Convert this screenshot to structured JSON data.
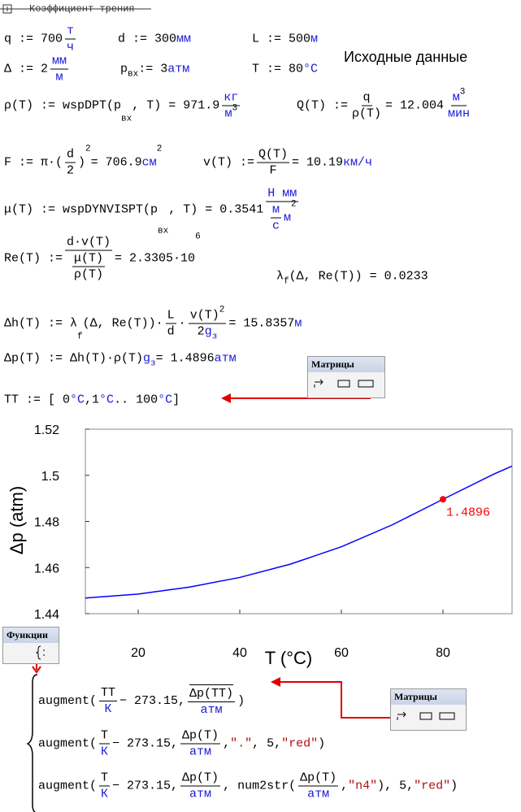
{
  "header": {
    "title": "Коэффициент трения"
  },
  "note": "Исходные данные",
  "formulas": [
    {
      "items": [
        "q := 700 ",
        {
          "fr": [
            [
              {
                "u": "т"
              }
            ],
            [
              {
                "u": "ч"
              }
            ]
          ]
        }
      ]
    },
    {
      "items": [
        "d := 300 ",
        {
          "u": "мм"
        }
      ]
    },
    {
      "items": [
        "L := 500 ",
        {
          "u": "м"
        }
      ]
    },
    {
      "items": [
        "Δ := 2 ",
        {
          "fr": [
            [
              {
                "u": "мм"
              }
            ],
            [
              {
                "u": "м"
              }
            ]
          ]
        }
      ]
    },
    {
      "items": [
        "p",
        {
          "sub": [
            "вх"
          ]
        },
        " := 3 ",
        {
          "u": "атм"
        }
      ]
    },
    {
      "items": [
        "T := 80 ",
        {
          "u": "°C"
        }
      ]
    },
    {
      "items": [
        "ρ(T) := wspDPT(p",
        {
          "sub": [
            "вх"
          ]
        },
        ", T) = 971.9 ",
        {
          "fr": [
            [
              {
                "u": "кг"
              }
            ],
            [
              {
                "u": "м"
              },
              {
                "sup": [
                  "3"
                ]
              }
            ]
          ]
        }
      ]
    },
    {
      "items": [
        "Q(T) := ",
        {
          "fr": [
            [
              "q"
            ],
            [
              "ρ(T)"
            ]
          ]
        },
        " = 12.004 ",
        {
          "fr": [
            [
              {
                "u": "м"
              },
              {
                "sup": [
                  "3"
                ]
              }
            ],
            [
              {
                "u": "мин"
              }
            ]
          ]
        }
      ]
    },
    {
      "items": [
        "F := π·(",
        {
          "fr": [
            [
              "d"
            ],
            [
              "2"
            ]
          ]
        },
        ")",
        {
          "sup": [
            "2"
          ]
        },
        " = 706.9 ",
        {
          "u": "см"
        },
        {
          "sup": [
            "2"
          ]
        }
      ]
    },
    {
      "items": [
        "v(T) := ",
        {
          "fr": [
            [
              "Q(T)"
            ],
            [
              "F"
            ]
          ]
        },
        " = 10.19 ",
        {
          "u": "км/ч"
        }
      ]
    },
    {
      "items": [
        "μ(T) := wspDYNVISPT(p",
        {
          "sub": [
            "вх"
          ]
        },
        ", T) = 0.3541 ",
        {
          "fr": [
            [
              {
                "u": "Н мм"
              }
            ],
            [
              {
                "fr": [
                  [
                    {
                      "u": "м"
                    }
                  ],
                  [
                    {
                      "u": "с"
                    }
                  ]
                ]
              },
              " ",
              {
                "u": "м"
              },
              {
                "sup": [
                  "2"
                ]
              }
            ]
          ]
        }
      ]
    },
    {
      "items": [
        "Re(T) := ",
        {
          "fr": [
            [
              "d·v(T)"
            ],
            [
              {
                "fr": [
                  [
                    "μ(T)"
                  ],
                  [
                    "ρ(T)"
                  ]
                ]
              }
            ]
          ]
        },
        " = 2.3305·10",
        {
          "sup": [
            "6"
          ]
        }
      ]
    },
    {
      "items": [
        "λ",
        {
          "sub": [
            "f"
          ]
        },
        "(Δ, Re(T)) = 0.0233"
      ]
    },
    {
      "items": [
        "Δh(T) := λ",
        {
          "sub": [
            "f"
          ]
        },
        "(Δ, Re(T))·",
        {
          "fr": [
            [
              "L"
            ],
            [
              "d"
            ]
          ]
        },
        "·",
        {
          "fr": [
            [
              "v(T)",
              {
                "sup": [
                  "2"
                ]
              }
            ],
            [
              "2 ",
              {
                "u": "g"
              },
              {
                "sub": [
                  {
                    "u": "з"
                  }
                ]
              }
            ]
          ]
        },
        " = 15.8357 ",
        {
          "u": "м"
        }
      ]
    },
    {
      "items": [
        "Δp(T) := Δh(T)·ρ(T) ",
        {
          "u": "g"
        },
        {
          "sub": [
            {
              "u": "з"
            }
          ]
        },
        " = 1.4896 ",
        {
          "u": "атм"
        }
      ]
    },
    {
      "items": [
        "TT := [ 0 ",
        {
          "u": "°C"
        },
        " ,1 ",
        {
          "u": "°C"
        },
        ".. 100 ",
        {
          "u": "°C"
        },
        " ]"
      ]
    },
    {
      "items": [
        "augment(",
        {
          "fr": [
            [
              "TT"
            ],
            [
              {
                "u": "К"
              }
            ]
          ]
        },
        " − 273.15, ",
        {
          "fr": [
            [
              {
                "ov": [
                  "Δp(TT)"
                ]
              }
            ],
            [
              {
                "u": "атм"
              }
            ]
          ]
        },
        ")"
      ]
    },
    {
      "items": [
        "augment(",
        {
          "fr": [
            [
              "T"
            ],
            [
              {
                "u": "К"
              }
            ]
          ]
        },
        " − 273.15, ",
        {
          "fr": [
            [
              "Δp(T)"
            ],
            [
              {
                "u": "атм"
              }
            ]
          ]
        },
        ", ",
        {
          "r": "\".\""
        },
        ", 5, ",
        {
          "r": "\"red\""
        },
        ")"
      ]
    },
    {
      "items": [
        "augment(",
        {
          "fr": [
            [
              "T"
            ],
            [
              {
                "u": "К"
              }
            ]
          ]
        },
        " − 273.15, ",
        {
          "fr": [
            [
              "Δp(T)"
            ],
            [
              {
                "u": "атм"
              }
            ]
          ]
        },
        ", num2str(",
        {
          "fr": [
            [
              "Δp(T)"
            ],
            [
              {
                "u": "атм"
              }
            ]
          ]
        },
        ", ",
        {
          "r": "\"n4\""
        },
        "), 5, ",
        {
          "r": "\"red\""
        },
        ")"
      ]
    }
  ],
  "toolbars": [
    {
      "title": "Матрицы"
    },
    {
      "title": "Функции"
    },
    {
      "title": "Матрицы"
    }
  ],
  "chart_data": {
    "type": "line",
    "xlabel": "T (°C)",
    "ylabel": "Δp (atm)",
    "color": "#0000ff",
    "x": [
      9.6,
      20,
      30,
      40,
      50,
      60,
      70,
      80,
      90,
      93.6
    ],
    "values": [
      1.4468,
      1.4485,
      1.4515,
      1.4557,
      1.4615,
      1.469,
      1.4785,
      1.4896,
      1.5005,
      1.504
    ],
    "xlim": [
      9.6,
      93.6
    ],
    "ylim": [
      1.44,
      1.52
    ],
    "xticks": [
      20,
      40,
      60,
      80
    ],
    "yticks": [
      1.44,
      1.46,
      1.48,
      1.5,
      1.52
    ],
    "marker": {
      "x": 80,
      "value": 1.4896,
      "label": "1.4896",
      "color": "#ff0000"
    }
  }
}
